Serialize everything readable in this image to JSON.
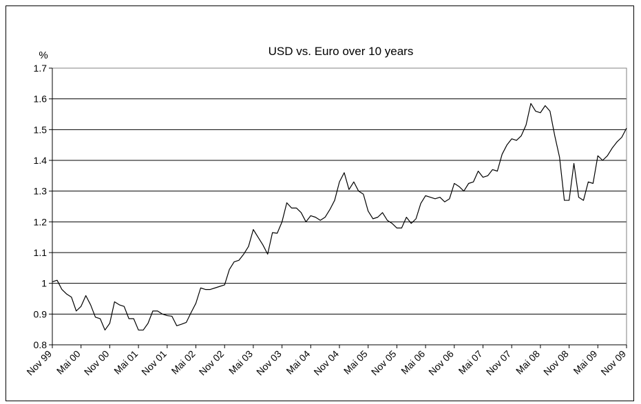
{
  "chart_data": {
    "type": "line",
    "title": "USD vs. Euro over 10 years",
    "ylabel": "%",
    "xlabel": "",
    "ylim": [
      0.8,
      1.7
    ],
    "yticks": [
      "0.8",
      "0.9",
      "1",
      "1.1",
      "1.2",
      "1.3",
      "1.4",
      "1.5",
      "1.6",
      "1.7"
    ],
    "xtick_labels": [
      "Nov 99",
      "Mai 00",
      "Nov 00",
      "Mai 01",
      "Nov 01",
      "Mai 02",
      "Nov 02",
      "Mai 03",
      "Nov 03",
      "Mai 04",
      "Nov 04",
      "Mai 05",
      "Nov 05",
      "Mai 06",
      "Nov 06",
      "Mai 07",
      "Nov 07",
      "Mai 08",
      "Nov 08",
      "Mai 09",
      "Nov 09"
    ],
    "grid": "horizontal",
    "line_color": "#000000",
    "series": [
      {
        "x_start": "Nov 99",
        "frequency": "monthly",
        "values": [
          1.005,
          1.01,
          0.98,
          0.965,
          0.955,
          0.91,
          0.925,
          0.96,
          0.93,
          0.89,
          0.885,
          0.848,
          0.87,
          0.94,
          0.93,
          0.925,
          0.885,
          0.885,
          0.848,
          0.848,
          0.87,
          0.91,
          0.91,
          0.9,
          0.895,
          0.893,
          0.862,
          0.867,
          0.873,
          0.905,
          0.935,
          0.985,
          0.98,
          0.98,
          0.985,
          0.99,
          0.995,
          1.045,
          1.07,
          1.075,
          1.095,
          1.12,
          1.175,
          1.15,
          1.125,
          1.095,
          1.165,
          1.163,
          1.2,
          1.262,
          1.245,
          1.245,
          1.23,
          1.2,
          1.22,
          1.215,
          1.205,
          1.215,
          1.24,
          1.27,
          1.33,
          1.36,
          1.305,
          1.33,
          1.3,
          1.29,
          1.235,
          1.21,
          1.215,
          1.23,
          1.205,
          1.195,
          1.18,
          1.18,
          1.215,
          1.195,
          1.21,
          1.26,
          1.285,
          1.28,
          1.275,
          1.28,
          1.265,
          1.275,
          1.325,
          1.315,
          1.3,
          1.325,
          1.33,
          1.365,
          1.345,
          1.35,
          1.37,
          1.365,
          1.42,
          1.45,
          1.47,
          1.465,
          1.48,
          1.515,
          1.585,
          1.56,
          1.555,
          1.578,
          1.56,
          1.48,
          1.41,
          1.27,
          1.27,
          1.39,
          1.28,
          1.27,
          1.33,
          1.325,
          1.415,
          1.4,
          1.415,
          1.44,
          1.46,
          1.475,
          1.505
        ]
      }
    ]
  }
}
